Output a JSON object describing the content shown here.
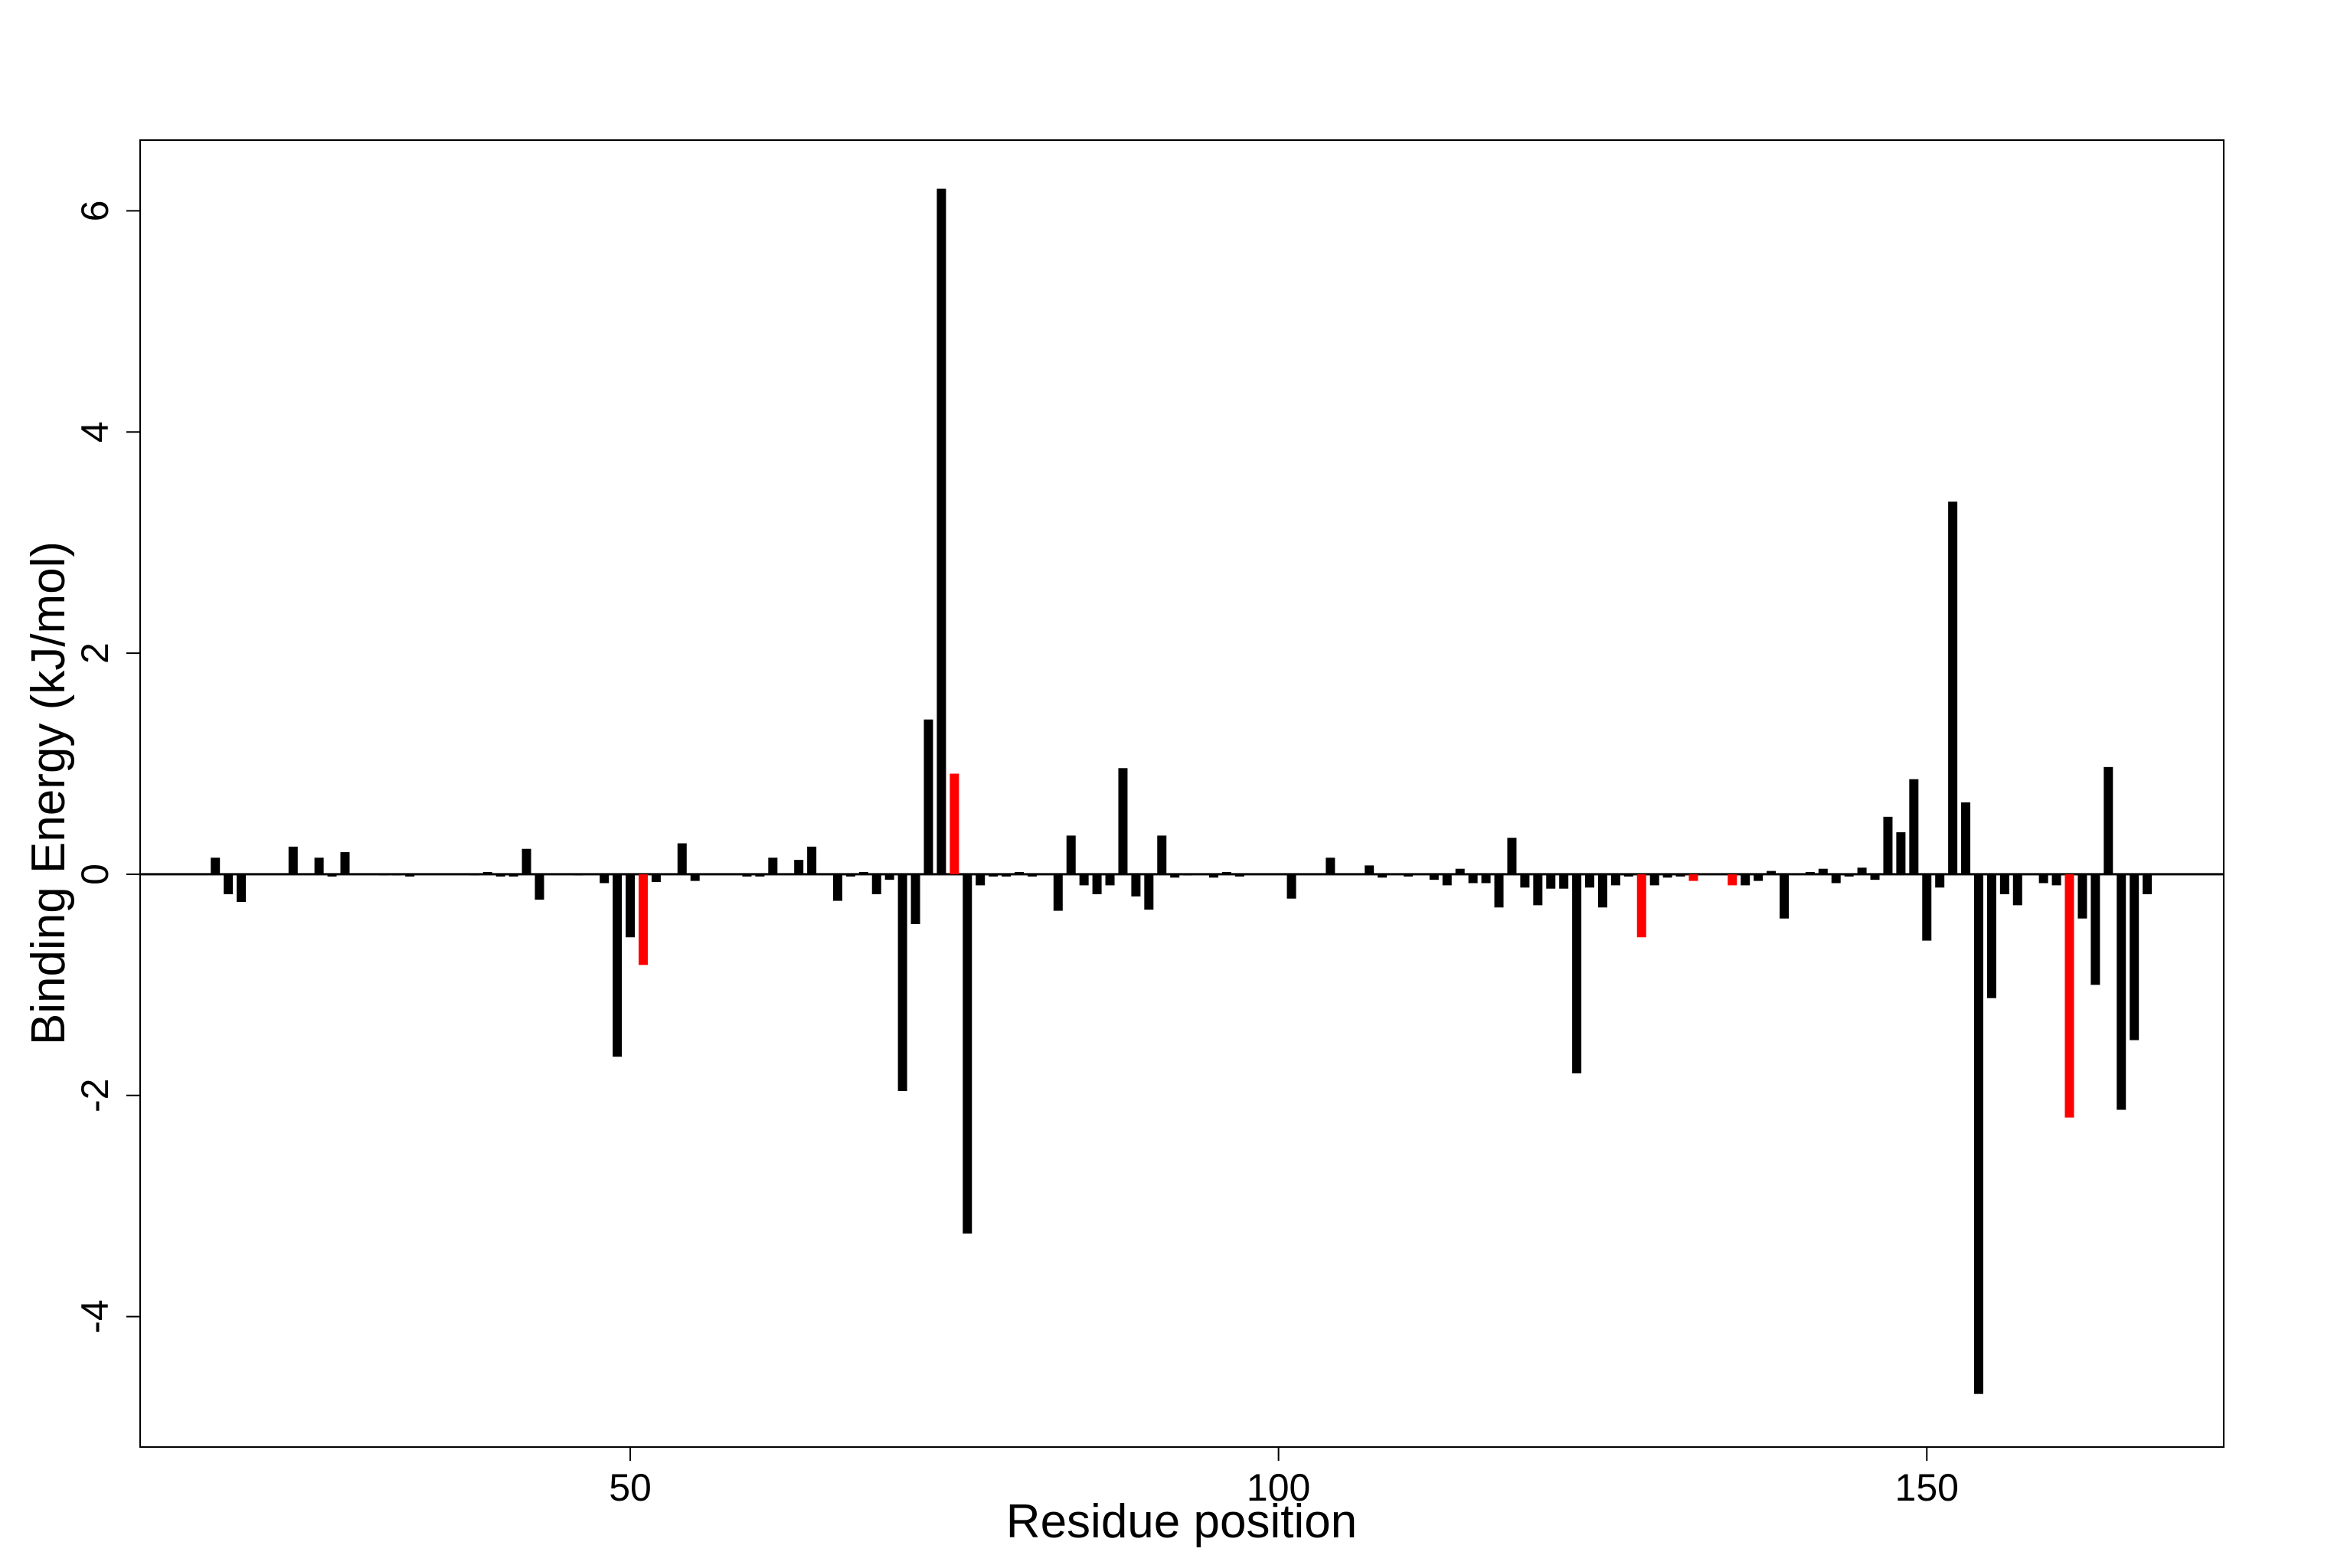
{
  "chart_data": {
    "type": "bar",
    "xlabel": "Residue position",
    "ylabel": "Binding Energy (kJ/mol)",
    "x": [
      18,
      19,
      20,
      21,
      22,
      23,
      24,
      25,
      26,
      27,
      28,
      29,
      30,
      31,
      32,
      33,
      34,
      35,
      36,
      37,
      38,
      39,
      40,
      41,
      42,
      43,
      44,
      45,
      46,
      47,
      48,
      49,
      50,
      51,
      52,
      53,
      54,
      55,
      56,
      57,
      58,
      59,
      60,
      61,
      62,
      63,
      64,
      65,
      66,
      67,
      68,
      69,
      70,
      71,
      72,
      73,
      74,
      75,
      76,
      77,
      78,
      79,
      80,
      81,
      82,
      83,
      84,
      85,
      86,
      87,
      88,
      89,
      90,
      91,
      92,
      93,
      94,
      95,
      96,
      97,
      98,
      99,
      100,
      101,
      102,
      103,
      104,
      105,
      106,
      107,
      108,
      109,
      110,
      111,
      112,
      113,
      114,
      115,
      116,
      117,
      118,
      119,
      120,
      121,
      122,
      123,
      124,
      125,
      126,
      127,
      128,
      129,
      130,
      131,
      132,
      133,
      134,
      135,
      136,
      137,
      138,
      139,
      140,
      141,
      142,
      143,
      144,
      145,
      146,
      147,
      148,
      149,
      150,
      151,
      152,
      153,
      154,
      155,
      156,
      157,
      158,
      159,
      160,
      161,
      162,
      163,
      164,
      165,
      166,
      167
    ],
    "values": [
      0.15,
      -0.18,
      -0.25,
      0,
      0,
      0,
      0.25,
      0,
      0.15,
      -0.02,
      0.2,
      0,
      0,
      -0.01,
      -0.01,
      -0.02,
      0,
      0,
      0,
      0,
      -0.01,
      0.02,
      -0.02,
      -0.02,
      0.23,
      -0.23,
      0,
      0,
      -0.01,
      0,
      -0.08,
      -1.65,
      -0.57,
      -0.82,
      -0.07,
      0,
      0.28,
      -0.06,
      0,
      0,
      0,
      -0.02,
      -0.02,
      0.15,
      0,
      0.13,
      0.25,
      0,
      -0.24,
      -0.02,
      0.02,
      -0.18,
      -0.05,
      -1.96,
      -0.45,
      1.4,
      6.2,
      0.91,
      -3.25,
      -0.1,
      -0.02,
      -0.02,
      0.02,
      -0.02,
      0,
      -0.33,
      0.35,
      -0.1,
      -0.18,
      -0.1,
      0.96,
      -0.2,
      -0.32,
      0.35,
      -0.03,
      -0.01,
      0,
      -0.03,
      0.02,
      -0.02,
      0,
      0,
      0,
      -0.22,
      0,
      0,
      0.15,
      0,
      0,
      0.08,
      -0.03,
      0,
      -0.02,
      0,
      -0.05,
      -0.1,
      0.05,
      -0.08,
      -0.08,
      -0.3,
      0.33,
      -0.12,
      -0.28,
      -0.13,
      -0.13,
      -1.8,
      -0.12,
      -0.3,
      -0.1,
      -0.02,
      -0.57,
      -0.1,
      -0.03,
      -0.02,
      -0.06,
      0,
      0,
      -0.1,
      -0.1,
      -0.06,
      0.03,
      -0.4,
      0,
      0.02,
      0.05,
      -0.08,
      -0.02,
      0.06,
      -0.05,
      0.52,
      0.38,
      0.86,
      -0.6,
      -0.12,
      3.37,
      0.65,
      -4.7,
      -1.12,
      -0.18,
      -0.28,
      0,
      -0.08,
      -0.1,
      -2.2,
      -0.4,
      -1.0,
      0.97,
      -2.13,
      -1.5,
      -0.18
    ],
    "color": "#000000",
    "highlight_color": "#ff0000",
    "highlight_x": [
      51,
      75,
      128,
      132,
      135,
      161
    ],
    "xlim": [
      12.2,
      172.9
    ],
    "ylim": [
      -5.18,
      6.64
    ],
    "xticks": [
      50,
      100,
      150
    ],
    "yticks": [
      -4,
      -2,
      0,
      2,
      4,
      6
    ]
  }
}
